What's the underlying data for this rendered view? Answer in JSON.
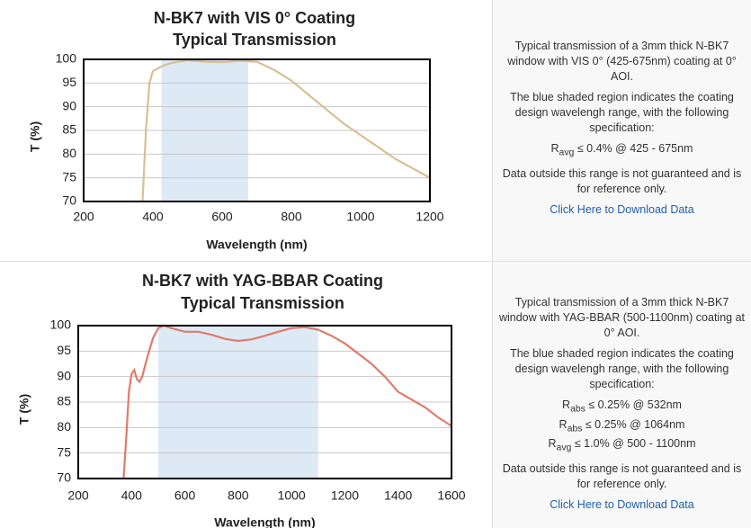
{
  "chart_data": [
    {
      "type": "line",
      "title": "N-BK7 with VIS 0° Coating",
      "subtitle": "Typical Transmission",
      "x_label": "Wavelength (nm)",
      "y_label": "T (%)",
      "color": "#d9bf94",
      "shade_color": "#dde9f5",
      "shaded_range": [
        425,
        675
      ],
      "x": [
        370,
        380,
        390,
        400,
        425,
        450,
        500,
        550,
        600,
        650,
        700,
        750,
        800,
        850,
        900,
        950,
        1000,
        1050,
        1100,
        1150,
        1200
      ],
      "values": [
        70,
        85,
        95,
        97.5,
        98.5,
        99.2,
        99.8,
        99.5,
        99.4,
        99.7,
        99.5,
        97.8,
        95.5,
        92.5,
        89.5,
        86.5,
        84,
        81.5,
        79,
        77,
        75
      ],
      "xlim": [
        200,
        1200
      ],
      "xticks": [
        200,
        400,
        600,
        800,
        1000,
        1200
      ],
      "ylim": [
        70,
        100
      ],
      "yticks": [
        70,
        75,
        80,
        85,
        90,
        95,
        100
      ],
      "grid": true
    },
    {
      "type": "line",
      "title": "N-BK7 with YAG-BBAR Coating",
      "subtitle": "Typical Transmission",
      "x_label": "Wavelength (nm)",
      "y_label": "T (%)",
      "color": "#e07b6b",
      "shade_color": "#dde9f5",
      "shaded_range": [
        500,
        1100
      ],
      "x": [
        370,
        380,
        390,
        400,
        410,
        420,
        430,
        440,
        460,
        480,
        500,
        520,
        550,
        600,
        650,
        700,
        750,
        800,
        850,
        900,
        950,
        1000,
        1050,
        1100,
        1150,
        1200,
        1250,
        1300,
        1350,
        1400,
        1450,
        1500,
        1550,
        1600
      ],
      "values": [
        70,
        78,
        87,
        90.5,
        91.3,
        89.5,
        89,
        90,
        94,
        97.5,
        99.5,
        100,
        99.5,
        98.8,
        98.8,
        98.2,
        97.4,
        97,
        97.3,
        98,
        98.8,
        99.5,
        99.7,
        99.2,
        98,
        96.5,
        94.5,
        92.5,
        90,
        87,
        85.5,
        84,
        82,
        80.3
      ],
      "xlim": [
        200,
        1600
      ],
      "xticks": [
        200,
        400,
        600,
        800,
        1000,
        1200,
        1400,
        1600
      ],
      "ylim": [
        70,
        100
      ],
      "yticks": [
        70,
        75,
        80,
        85,
        90,
        95,
        100
      ],
      "grid": true
    }
  ],
  "panels": [
    {
      "intro": "Typical transmission of a 3mm thick N-BK7 window with VIS 0° (425-675nm) coating at 0° AOI.",
      "region": "The blue shaded region indicates the coating design wavelengh range, with the following specification:",
      "specs": [
        {
          "symbol": "R",
          "sub": "avg",
          "text": "≤ 0.4% @ 425 - 675nm"
        }
      ],
      "note": "Data outside this range is not guaranteed and is for reference only.",
      "link": "Click Here to Download Data"
    },
    {
      "intro": "Typical transmission of a 3mm thick N-BK7 window with YAG-BBAR (500-1100nm) coating at 0° AOI.",
      "region": "The blue shaded region indicates the coating design wavelengh range, with the following specification:",
      "specs": [
        {
          "symbol": "R",
          "sub": "abs",
          "text": "≤ 0.25% @ 532nm"
        },
        {
          "symbol": "R",
          "sub": "abs",
          "text": "≤ 0.25% @ 1064nm"
        },
        {
          "symbol": "R",
          "sub": "avg",
          "text": "≤ 1.0% @ 500 - 1100nm"
        }
      ],
      "note": "Data outside this range is not guaranteed and is for reference only.",
      "link": "Click Here to Download Data"
    }
  ]
}
